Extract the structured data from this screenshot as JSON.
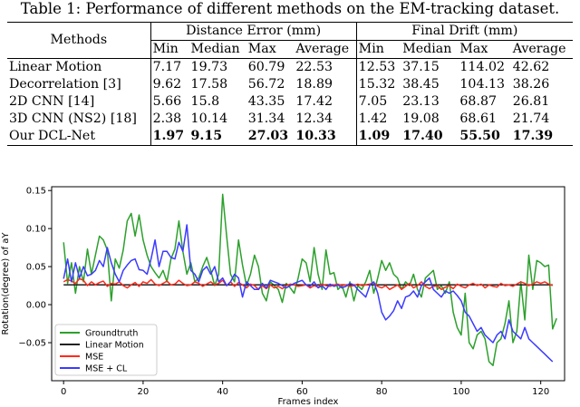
{
  "caption": "Table 1: Performance of different methods on the EM-tracking dataset.",
  "table": {
    "methods_header": "Methods",
    "group_headers": [
      "Distance Error (mm)",
      "Final Drift (mm)"
    ],
    "sub_headers": [
      "Min",
      "Median",
      "Max",
      "Average",
      "Min",
      "Median",
      "Max",
      "Average"
    ],
    "rows": [
      {
        "method": "Linear Motion",
        "values": [
          "7.17",
          "19.73",
          "60.79",
          "22.53",
          "12.53",
          "37.15",
          "114.02",
          "42.62"
        ]
      },
      {
        "method": "Decorrelation [3]",
        "values": [
          "9.62",
          "17.58",
          "56.72",
          "18.89",
          "15.32",
          "38.45",
          "104.13",
          "38.26"
        ]
      },
      {
        "method": "2D CNN [14]",
        "values": [
          "5.66",
          "15.8",
          "43.35",
          "17.42",
          "7.05",
          "23.13",
          "68.87",
          "26.81"
        ]
      },
      {
        "method": "3D CNN (NS2) [18]",
        "values": [
          "2.38",
          "10.14",
          "31.34",
          "12.34",
          "1.42",
          "19.08",
          "68.61",
          "21.74"
        ]
      },
      {
        "method": "Our DCL-Net",
        "values": [
          "1.97",
          "9.15",
          "27.03",
          "10.33",
          "1.09",
          "17.40",
          "55.50",
          "17.39"
        ]
      }
    ]
  },
  "chart_data": {
    "type": "line",
    "title": "",
    "xlabel": "Frames index",
    "ylabel": "Rotation(degree) of aY",
    "xlim": [
      -3,
      126
    ],
    "ylim": [
      -0.1,
      0.155
    ],
    "xticks": [
      0,
      20,
      40,
      60,
      80,
      100,
      120
    ],
    "yticks": [
      -0.05,
      0.0,
      0.05,
      0.1,
      0.15
    ],
    "ytick_labels": [
      "−0.05",
      "0.00",
      "0.05",
      "0.10",
      "0.15"
    ],
    "legend_position": "bottom-left",
    "series": [
      {
        "name": "Groundtruth",
        "color": "#2ca02c",
        "values": [
          0.082,
          0.028,
          0.055,
          0.015,
          0.05,
          0.03,
          0.073,
          0.04,
          0.065,
          0.09,
          0.085,
          0.072,
          0.005,
          0.06,
          0.048,
          0.072,
          0.11,
          0.12,
          0.09,
          0.118,
          0.085,
          0.065,
          0.05,
          0.042,
          0.035,
          0.045,
          0.03,
          0.06,
          0.073,
          0.11,
          0.07,
          0.04,
          0.055,
          0.03,
          0.035,
          0.05,
          0.062,
          0.045,
          0.025,
          0.04,
          0.145,
          0.09,
          0.04,
          0.03,
          0.085,
          0.052,
          0.025,
          0.04,
          0.065,
          0.05,
          0.015,
          0.005,
          0.03,
          0.025,
          0.02,
          0.003,
          0.028,
          0.022,
          0.015,
          0.035,
          0.06,
          0.055,
          0.03,
          0.075,
          0.04,
          0.02,
          0.072,
          0.04,
          0.042,
          0.02,
          0.025,
          0.01,
          0.03,
          0.005,
          0.025,
          0.02,
          0.03,
          0.045,
          0.015,
          0.035,
          0.058,
          0.045,
          0.055,
          0.04,
          0.035,
          0.02,
          0.03,
          0.025,
          0.04,
          0.02,
          0.01,
          0.035,
          0.04,
          0.045,
          0.02,
          0.025,
          0.015,
          0.03,
          -0.01,
          -0.03,
          -0.04,
          0.015,
          -0.05,
          -0.058,
          -0.04,
          -0.035,
          -0.045,
          -0.075,
          -0.08,
          -0.05,
          -0.045,
          -0.025,
          0.005,
          -0.05,
          -0.035,
          0.03,
          -0.02,
          0.065,
          0.02,
          0.058,
          0.055,
          0.05,
          0.052,
          -0.032,
          -0.018
        ]
      },
      {
        "name": "Linear Motion",
        "color": "#222222",
        "values": [
          0.026,
          0.026,
          0.026,
          0.026,
          0.026,
          0.026,
          0.026,
          0.026,
          0.026,
          0.026,
          0.026,
          0.026,
          0.026,
          0.026,
          0.026,
          0.026,
          0.026,
          0.026,
          0.026,
          0.026,
          0.026,
          0.026,
          0.026,
          0.026,
          0.026,
          0.026,
          0.026,
          0.026,
          0.026,
          0.026,
          0.026,
          0.026,
          0.026,
          0.026,
          0.026,
          0.026,
          0.026,
          0.026,
          0.026,
          0.026,
          0.026,
          0.026,
          0.026,
          0.026,
          0.026,
          0.026,
          0.026,
          0.026,
          0.026,
          0.026,
          0.026,
          0.026,
          0.026,
          0.026,
          0.026,
          0.026,
          0.026,
          0.026,
          0.026,
          0.026,
          0.026,
          0.026,
          0.026,
          0.026,
          0.026,
          0.026,
          0.026,
          0.026,
          0.026,
          0.026,
          0.026,
          0.026,
          0.026,
          0.026,
          0.026,
          0.026,
          0.026,
          0.026,
          0.026,
          0.026,
          0.026,
          0.026,
          0.026,
          0.026,
          0.026,
          0.026,
          0.026,
          0.026,
          0.026,
          0.026,
          0.026,
          0.026,
          0.026,
          0.026,
          0.026,
          0.026,
          0.026,
          0.026,
          0.026,
          0.026,
          0.026,
          0.026,
          0.026,
          0.026,
          0.026,
          0.026,
          0.026,
          0.026,
          0.026,
          0.026,
          0.026,
          0.026,
          0.026,
          0.026,
          0.026,
          0.026,
          0.026,
          0.026,
          0.026,
          0.026,
          0.026,
          0.026,
          0.026,
          0.026
        ]
      },
      {
        "name": "MSE",
        "color": "#ff2a1a",
        "values": [
          0.03,
          0.033,
          0.031,
          0.028,
          0.034,
          0.032,
          0.025,
          0.03,
          0.026,
          0.029,
          0.031,
          0.024,
          0.028,
          0.027,
          0.03,
          0.025,
          0.022,
          0.026,
          0.029,
          0.024,
          0.03,
          0.028,
          0.033,
          0.027,
          0.025,
          0.028,
          0.031,
          0.026,
          0.027,
          0.032,
          0.028,
          0.025,
          0.026,
          0.03,
          0.028,
          0.024,
          0.027,
          0.03,
          0.026,
          0.028,
          0.032,
          0.025,
          0.03,
          0.024,
          0.029,
          0.026,
          0.022,
          0.027,
          0.025,
          0.02,
          0.025,
          0.021,
          0.026,
          0.022,
          0.024,
          0.021,
          0.025,
          0.027,
          0.026,
          0.024,
          0.025,
          0.026,
          0.022,
          0.025,
          0.023,
          0.027,
          0.025,
          0.024,
          0.026,
          0.027,
          0.025,
          0.026,
          0.024,
          0.025,
          0.027,
          0.025,
          0.026,
          0.027,
          0.029,
          0.024,
          0.022,
          0.025,
          0.02,
          0.023,
          0.026,
          0.02,
          0.024,
          0.028,
          0.022,
          0.025,
          0.03,
          0.024,
          0.021,
          0.024,
          0.025,
          0.02,
          0.023,
          0.025,
          0.021,
          0.027,
          0.024,
          0.022,
          0.026,
          0.028,
          0.025,
          0.027,
          0.022,
          0.026,
          0.024,
          0.023,
          0.028,
          0.025,
          0.026,
          0.024,
          0.027,
          0.03,
          0.028,
          0.025,
          0.027,
          0.03,
          0.028,
          0.03,
          0.027,
          0.025
        ]
      },
      {
        "name": "MSE + CL",
        "color": "#3b3bff",
        "values": [
          0.034,
          0.06,
          0.03,
          0.055,
          0.035,
          0.05,
          0.038,
          0.04,
          0.045,
          0.058,
          0.05,
          0.075,
          0.055,
          0.04,
          0.03,
          0.045,
          0.052,
          0.058,
          0.06,
          0.046,
          0.045,
          0.04,
          0.06,
          0.085,
          0.05,
          0.07,
          0.07,
          0.062,
          0.06,
          0.082,
          0.07,
          0.105,
          0.045,
          0.04,
          0.03,
          0.045,
          0.05,
          0.04,
          0.05,
          0.03,
          0.035,
          0.025,
          0.03,
          0.04,
          0.035,
          0.01,
          0.03,
          0.025,
          0.02,
          0.02,
          0.028,
          0.022,
          0.032,
          0.03,
          0.028,
          0.025,
          0.022,
          0.025,
          0.028,
          0.03,
          0.032,
          0.026,
          0.024,
          0.03,
          0.022,
          0.025,
          0.02,
          0.027,
          0.024,
          0.026,
          0.022,
          0.024,
          0.028,
          0.026,
          0.02,
          0.015,
          0.01,
          0.025,
          0.03,
          0.015,
          -0.01,
          -0.02,
          -0.015,
          -0.008,
          0.005,
          -0.005,
          0.01,
          0.012,
          0.018,
          0.01,
          0.025,
          0.03,
          0.035,
          0.02,
          0.015,
          0.01,
          0.018,
          0.015,
          0.018,
          0.012,
          0.005,
          -0.01,
          -0.015,
          -0.025,
          -0.035,
          -0.03,
          -0.04,
          -0.045,
          -0.05,
          -0.04,
          -0.035,
          -0.045,
          -0.02,
          -0.035,
          -0.04,
          -0.045,
          -0.03,
          -0.045,
          -0.05,
          -0.055,
          -0.06,
          -0.065,
          -0.07,
          -0.075
        ]
      }
    ]
  }
}
